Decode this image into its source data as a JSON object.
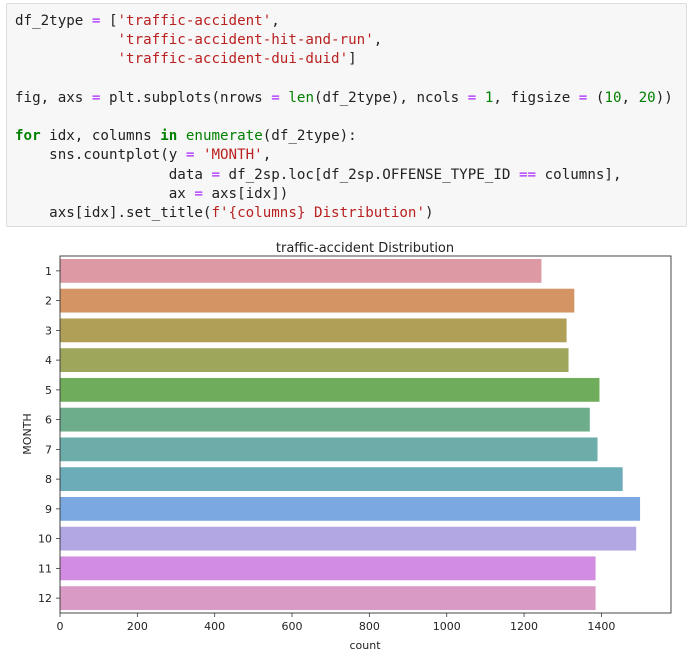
{
  "code_cell": {
    "lines": [
      [
        [
          "df_2type ",
          "txt"
        ],
        [
          "=",
          "op"
        ],
        [
          " [",
          "txt"
        ],
        [
          "'traffic-accident'",
          "str"
        ],
        [
          ",",
          "txt"
        ]
      ],
      [
        [
          "            ",
          "txt"
        ],
        [
          "'traffic-accident-hit-and-run'",
          "str"
        ],
        [
          ",",
          "txt"
        ]
      ],
      [
        [
          "            ",
          "txt"
        ],
        [
          "'traffic-accident-dui-duid'",
          "str"
        ],
        [
          "]",
          "txt"
        ]
      ],
      [],
      [
        [
          "fig, axs ",
          "txt"
        ],
        [
          "=",
          "op"
        ],
        [
          " plt.subplots(nrows ",
          "txt"
        ],
        [
          "=",
          "op"
        ],
        [
          " ",
          "txt"
        ],
        [
          "len",
          "bi"
        ],
        [
          "(df_2type), ncols ",
          "txt"
        ],
        [
          "=",
          "op"
        ],
        [
          " ",
          "txt"
        ],
        [
          "1",
          "num"
        ],
        [
          ", figsize ",
          "txt"
        ],
        [
          "=",
          "op"
        ],
        [
          " (",
          "txt"
        ],
        [
          "10",
          "num"
        ],
        [
          ", ",
          "txt"
        ],
        [
          "20",
          "num"
        ],
        [
          "))",
          "txt"
        ]
      ],
      [],
      [
        [
          "for",
          "kw"
        ],
        [
          " idx, columns ",
          "txt"
        ],
        [
          "in",
          "kw"
        ],
        [
          " ",
          "txt"
        ],
        [
          "enumerate",
          "bi"
        ],
        [
          "(df_2type):",
          "txt"
        ]
      ],
      [
        [
          "    sns.countplot(y ",
          "txt"
        ],
        [
          "=",
          "op"
        ],
        [
          " ",
          "txt"
        ],
        [
          "'MONTH'",
          "str"
        ],
        [
          ",",
          "txt"
        ]
      ],
      [
        [
          "                  data ",
          "txt"
        ],
        [
          "=",
          "op"
        ],
        [
          " df_2sp.loc[df_2sp.OFFENSE_TYPE_ID ",
          "txt"
        ],
        [
          "==",
          "op"
        ],
        [
          " columns],",
          "txt"
        ]
      ],
      [
        [
          "                  ax ",
          "txt"
        ],
        [
          "=",
          "op"
        ],
        [
          " axs[idx])",
          "txt"
        ]
      ],
      [
        [
          "    axs[idx].set_title(",
          "txt"
        ],
        [
          "f'{columns} Distribution'",
          "str"
        ],
        [
          ")",
          "txt"
        ]
      ]
    ]
  },
  "chart_data": {
    "type": "bar",
    "orientation": "horizontal",
    "title": "traffic-accident Distribution",
    "xlabel": "count",
    "ylabel": "MONTH",
    "categories": [
      "1",
      "2",
      "3",
      "4",
      "5",
      "6",
      "7",
      "8",
      "9",
      "10",
      "11",
      "12"
    ],
    "values": [
      1245,
      1330,
      1310,
      1315,
      1395,
      1370,
      1390,
      1455,
      1500,
      1490,
      1385,
      1385
    ],
    "colors": [
      "#dd9aa4",
      "#d49464",
      "#b09f56",
      "#9da65a",
      "#6fad5c",
      "#6dad8c",
      "#6cadaa",
      "#6cabb8",
      "#7ba8e0",
      "#b2a7e2",
      "#d28de2",
      "#d99bc6"
    ],
    "xlim": [
      0,
      1580
    ],
    "xticks": [
      0,
      200,
      400,
      600,
      800,
      1000,
      1200,
      1400
    ],
    "grid": false
  }
}
